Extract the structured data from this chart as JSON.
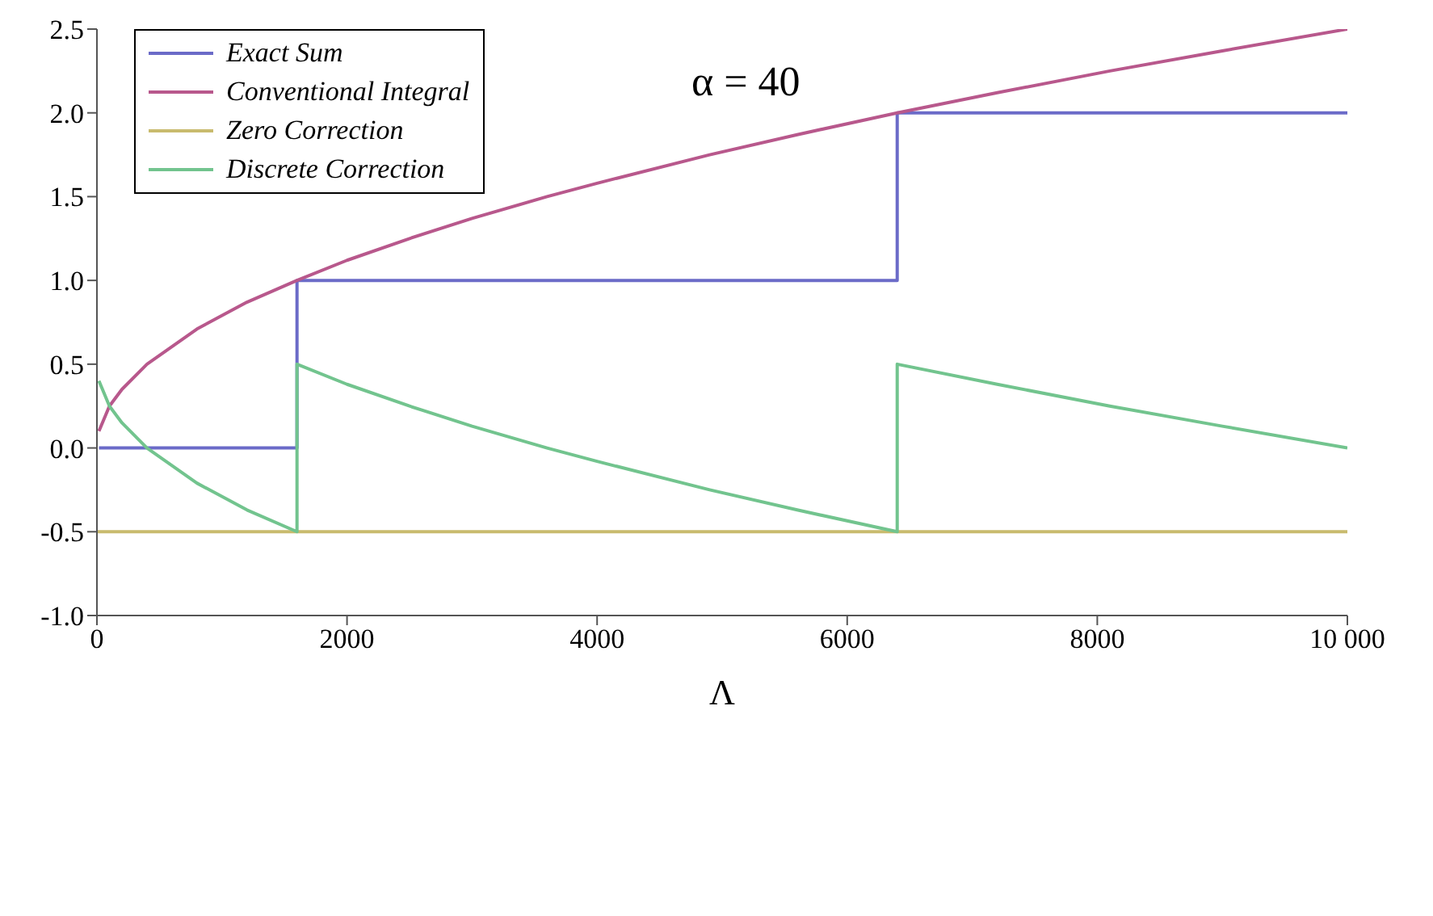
{
  "chart_data": {
    "type": "line",
    "xlabel": "Λ",
    "annotations": [
      "α = 40"
    ],
    "xlim": [
      0,
      10000
    ],
    "xticks": [
      0,
      2000,
      4000,
      6000,
      8000,
      {
        "value": 10000,
        "label": "10 000"
      }
    ],
    "ylim": [
      -1,
      2.5
    ],
    "yticks": [
      {
        "value": -1,
        "label": "-1.0"
      },
      {
        "value": -0.5,
        "label": "-0.5"
      },
      {
        "value": 0,
        "label": "0.0"
      },
      {
        "value": 0.5,
        "label": "0.5"
      },
      {
        "value": 1,
        "label": "1.0"
      },
      {
        "value": 1.5,
        "label": "1.5"
      },
      {
        "value": 2,
        "label": "2.0"
      },
      {
        "value": 2.5,
        "label": "2.5"
      }
    ],
    "legend": "top left",
    "marker": "none",
    "line_style": "solid",
    "grid": false,
    "series": [
      {
        "name": "Exact Sum",
        "color": "#6b6bc8",
        "x": [
          16,
          1600,
          1600,
          6400,
          6400,
          10000
        ],
        "values": [
          0,
          0,
          1,
          1,
          2,
          2
        ]
      },
      {
        "name": "Conventional Integral",
        "color": "#b8588c",
        "x": [
          16,
          100,
          200,
          400,
          800,
          1200,
          1600,
          2000,
          2500,
          3000,
          3600,
          4000,
          4900,
          5600,
          6400,
          7200,
          8100,
          9000,
          10000
        ],
        "values": [
          0.1,
          0.25,
          0.35,
          0.5,
          0.71,
          0.87,
          1,
          1.12,
          1.25,
          1.37,
          1.5,
          1.58,
          1.75,
          1.87,
          2,
          2.12,
          2.25,
          2.37,
          2.5
        ]
      },
      {
        "name": "Zero Correction",
        "color": "#c9bb6e",
        "x": [
          0,
          10000
        ],
        "values": [
          -0.5,
          -0.5
        ]
      },
      {
        "name": "Discrete Correction",
        "color": "#72c48e",
        "x": [
          16,
          100,
          200,
          400,
          800,
          1200,
          1600,
          1600,
          2000,
          2500,
          3000,
          3600,
          4000,
          4900,
          5600,
          6400,
          6400,
          7200,
          8100,
          9000,
          10000
        ],
        "values": [
          0.4,
          0.25,
          0.15,
          0,
          -0.21,
          -0.37,
          -0.5,
          0.5,
          0.38,
          0.25,
          0.13,
          0,
          -0.08,
          -0.25,
          -0.37,
          -0.5,
          0.5,
          0.38,
          0.25,
          0.13,
          0
        ]
      }
    ]
  }
}
